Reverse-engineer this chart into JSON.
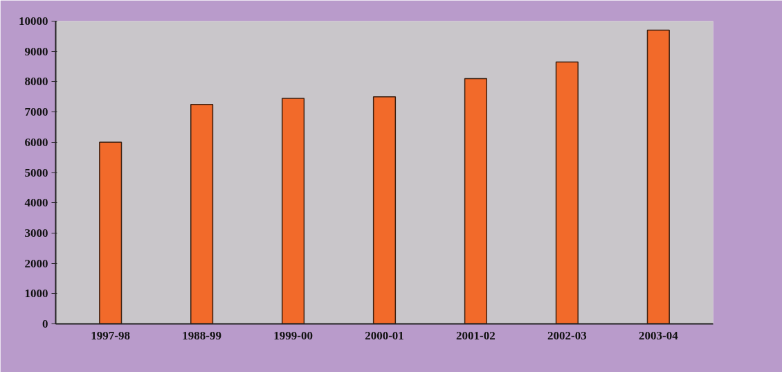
{
  "chart_data": {
    "type": "bar",
    "categories": [
      "1997-98",
      "1988-99",
      "1999-00",
      "2000-01",
      "2001-02",
      "2002-03",
      "2003-04"
    ],
    "values": [
      6000,
      7250,
      7450,
      7500,
      8100,
      8650,
      9700
    ],
    "color": "#f26a2a",
    "ylim": [
      0,
      10000
    ],
    "yticks": [
      0,
      1000,
      2000,
      3000,
      4000,
      5000,
      6000,
      7000,
      8000,
      9000,
      10000
    ],
    "grid": false
  }
}
